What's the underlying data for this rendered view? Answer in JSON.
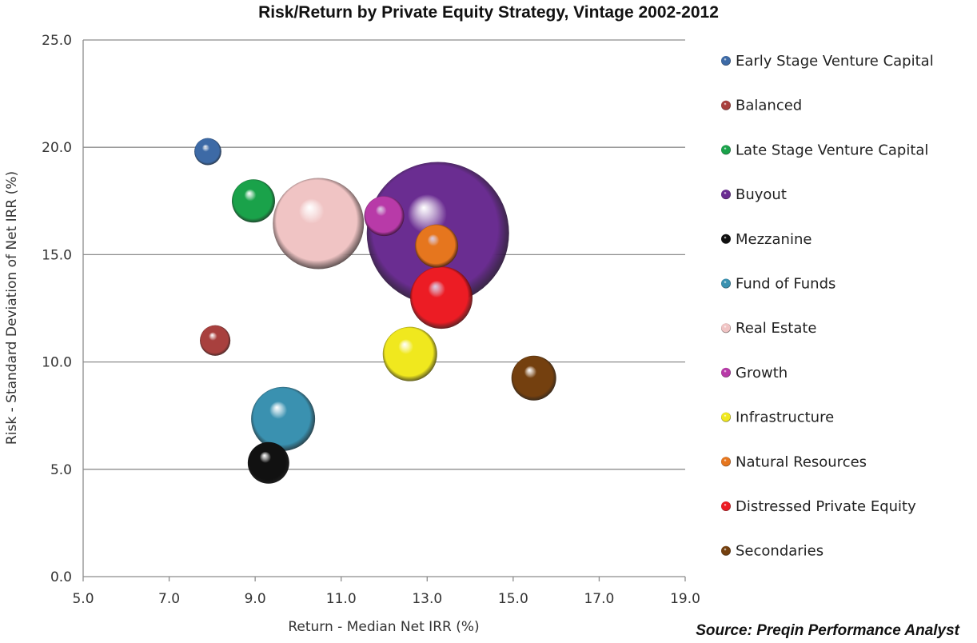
{
  "chart_data": {
    "type": "bubble",
    "title": "Risk/Return by Private Equity Strategy, Vintage 2002-2012",
    "xlabel": "Return - Median Net IRR (%)",
    "ylabel": "Risk - Standard Deviation of Net IRR (%)",
    "xlim": [
      5,
      19
    ],
    "ylim": [
      0,
      25
    ],
    "xticks": [
      "5.0",
      "7.0",
      "9.0",
      "11.0",
      "13.0",
      "15.0",
      "17.0",
      "19.0"
    ],
    "yticks": [
      "0.0",
      "5.0",
      "10.0",
      "15.0",
      "20.0",
      "25.0"
    ],
    "grid": "horizontal",
    "legend_position": "right",
    "size_note_relative": true,
    "series": [
      {
        "name": "Early Stage Venture Capital",
        "x": 7.9,
        "y": 19.8,
        "size": 3.6,
        "color": "#3d6aa6"
      },
      {
        "name": "Balanced",
        "x": 8.07,
        "y": 11.0,
        "size": 4.6,
        "color": "#a8403e"
      },
      {
        "name": "Late Stage Venture Capital",
        "x": 8.96,
        "y": 17.5,
        "size": 9.2,
        "color": "#1aa24a"
      },
      {
        "name": "Buyout",
        "x": 13.25,
        "y": 16.0,
        "size": 100,
        "color": "#6a2d91"
      },
      {
        "name": "Mezzanine",
        "x": 9.31,
        "y": 5.3,
        "size": 8.5,
        "color": "#111111"
      },
      {
        "name": "Fund of Funds",
        "x": 9.65,
        "y": 7.35,
        "size": 20.2,
        "color": "#3a91b0"
      },
      {
        "name": "Real Estate",
        "x": 10.47,
        "y": 16.45,
        "size": 41,
        "color": "#f0c4c4"
      },
      {
        "name": "Growth",
        "x": 12.0,
        "y": 16.8,
        "size": 7.9,
        "color": "#b83aa8"
      },
      {
        "name": "Infrastructure",
        "x": 12.6,
        "y": 10.37,
        "size": 14.6,
        "color": "#f0e81e"
      },
      {
        "name": "Natural Resources",
        "x": 13.22,
        "y": 15.4,
        "size": 9.2,
        "color": "#e6761e"
      },
      {
        "name": "Distressed Private Equity",
        "x": 13.33,
        "y": 13.0,
        "size": 19.2,
        "color": "#ec1c24"
      },
      {
        "name": "Secondaries",
        "x": 15.48,
        "y": 9.25,
        "size": 9.9,
        "color": "#74400f"
      }
    ]
  },
  "source": "Source: Preqin Performance Analyst"
}
